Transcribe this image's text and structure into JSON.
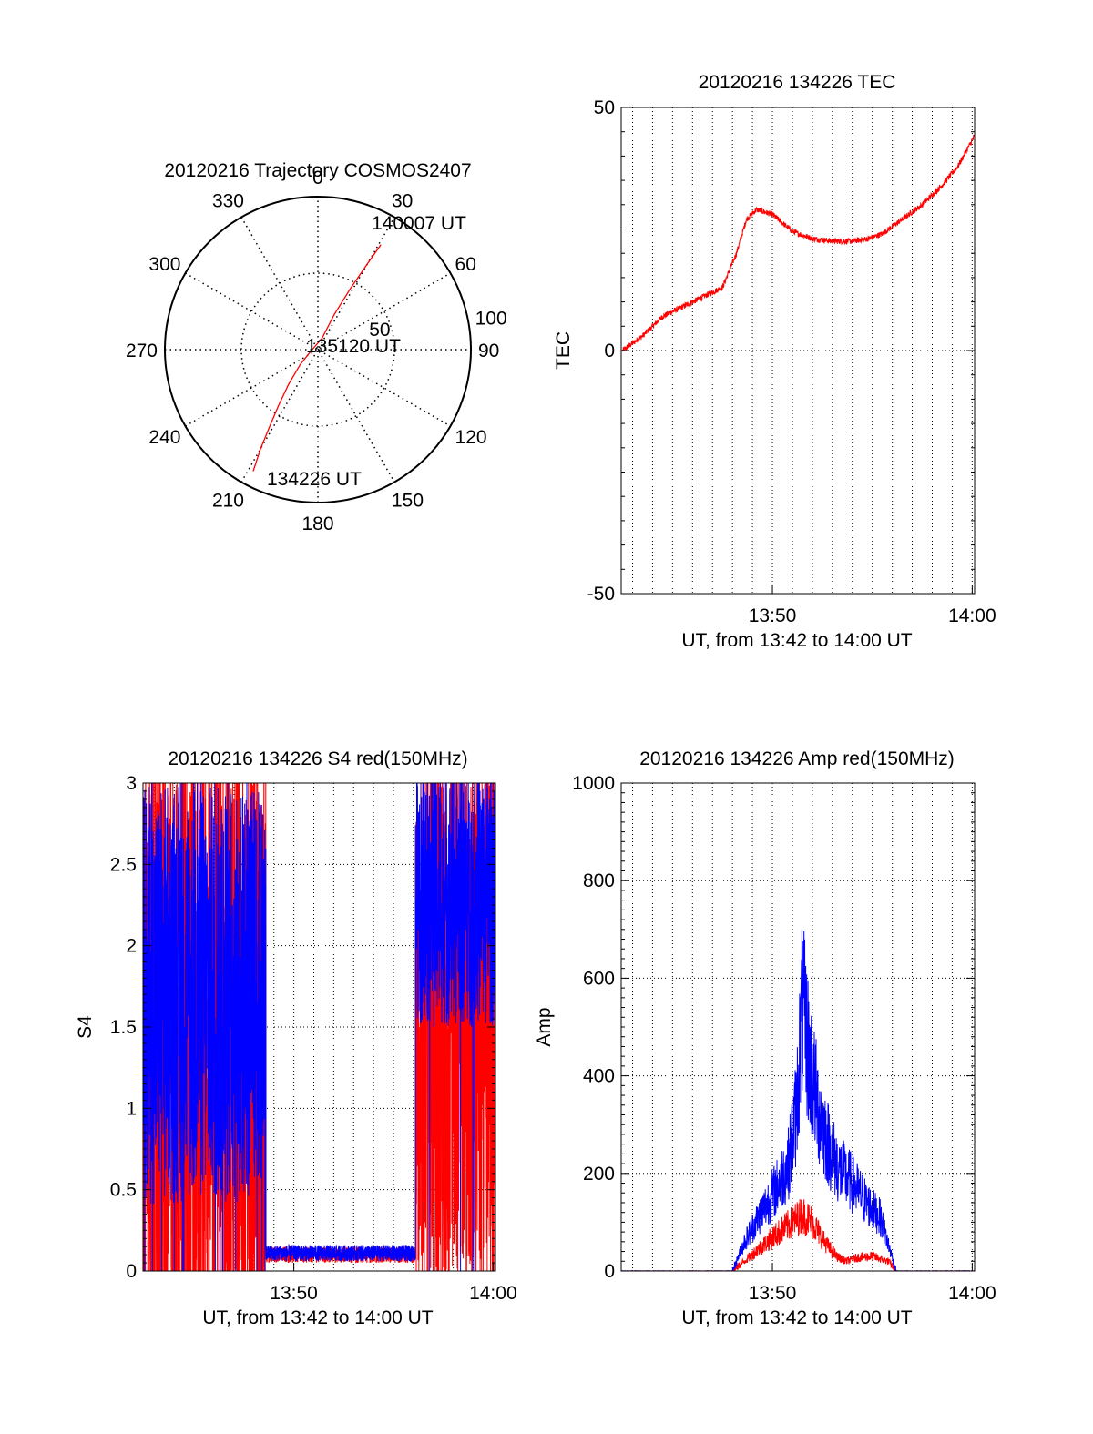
{
  "colors": {
    "red": "#ff0000",
    "blue": "#0000ff",
    "axis": "#000000",
    "grid": "#000000"
  },
  "chart_data": [
    {
      "id": "trajectory",
      "type": "polar",
      "title": "20120216 Trajectory COSMOS2407",
      "radial_ticks": [
        "50",
        "100"
      ],
      "radial_values": [
        50,
        100
      ],
      "angle_ticks": [
        {
          "deg": 0,
          "label": "0"
        },
        {
          "deg": 30,
          "label": "30"
        },
        {
          "deg": 60,
          "label": "60"
        },
        {
          "deg": 90,
          "label": "90"
        },
        {
          "deg": 120,
          "label": "120"
        },
        {
          "deg": 150,
          "label": "150"
        },
        {
          "deg": 180,
          "label": "180"
        },
        {
          "deg": 210,
          "label": "210"
        },
        {
          "deg": 240,
          "label": "240"
        },
        {
          "deg": 270,
          "label": "270"
        },
        {
          "deg": 300,
          "label": "300"
        },
        {
          "deg": 330,
          "label": "330"
        }
      ],
      "annotations": [
        "140007 UT",
        "135120 UT",
        "134226 UT"
      ],
      "track": [
        {
          "az": 208,
          "r": 90
        },
        {
          "az": 210,
          "r": 75
        },
        {
          "az": 212,
          "r": 60
        },
        {
          "az": 215,
          "r": 45
        },
        {
          "az": 220,
          "r": 30
        },
        {
          "az": 230,
          "r": 15
        },
        {
          "az": 255,
          "r": 5
        },
        {
          "az": 20,
          "r": 8
        },
        {
          "az": 25,
          "r": 25
        },
        {
          "az": 28,
          "r": 45
        },
        {
          "az": 30,
          "r": 65
        },
        {
          "az": 31,
          "r": 80
        }
      ]
    },
    {
      "id": "tec",
      "type": "line",
      "title": "20120216 134226 TEC",
      "xlabel": "UT, from 13:42 to 14:00 UT",
      "ylabel": "TEC",
      "xlim": [
        822.43,
        840.12
      ],
      "ylim": [
        -50,
        50
      ],
      "x_ticks": [
        {
          "value": 830,
          "label": "13:50"
        },
        {
          "value": 840,
          "label": "14:00"
        }
      ],
      "y_ticks": [
        {
          "value": -50,
          "label": "-50"
        },
        {
          "value": 0,
          "label": "0"
        },
        {
          "value": 50,
          "label": "50"
        }
      ],
      "series": [
        {
          "color": "red",
          "noise": 0.6,
          "x": [
            822.5,
            823.5,
            824.5,
            825.5,
            826.5,
            827.5,
            828.2,
            828.7,
            829.2,
            830.0,
            831.0,
            832.0,
            833.0,
            834.0,
            834.8,
            835.5,
            836.5,
            837.5,
            838.5,
            839.3,
            840.1
          ],
          "y": [
            0,
            3,
            7,
            9,
            11,
            13,
            20,
            27,
            29,
            28,
            24.5,
            23,
            22.5,
            22.5,
            23,
            24,
            27,
            30,
            34,
            38,
            44
          ]
        }
      ]
    },
    {
      "id": "s4",
      "type": "line",
      "title": "20120216 134226 S4 red(150MHz)",
      "xlabel": "UT, from 13:42 to 14:00 UT",
      "ylabel": "S4",
      "xlim": [
        822.43,
        840.12
      ],
      "ylim": [
        0,
        3
      ],
      "x_ticks": [
        {
          "value": 830,
          "label": "13:50"
        },
        {
          "value": 840,
          "label": "14:00"
        }
      ],
      "y_ticks": [
        {
          "value": 0,
          "label": "0"
        },
        {
          "value": 0.5,
          "label": "0.5"
        },
        {
          "value": 1,
          "label": "1"
        },
        {
          "value": 1.5,
          "label": "1.5"
        },
        {
          "value": 2,
          "label": "2"
        },
        {
          "value": 2.5,
          "label": "2.5"
        },
        {
          "value": 3,
          "label": "3"
        }
      ],
      "series": [
        {
          "color": "red",
          "segments": [
            {
              "x0": 822.43,
              "x1": 828.6,
              "base": 1.2,
              "spread": 1.8,
              "spikes": 0.18
            },
            {
              "x0": 828.6,
              "x1": 836.1,
              "base": 0.1,
              "spread": 0.05,
              "spikes": 0
            },
            {
              "x0": 836.1,
              "x1": 840.12,
              "base": 1.6,
              "spread": 1.6,
              "spikes": 0.12
            }
          ]
        },
        {
          "color": "blue",
          "segments": [
            {
              "x0": 822.43,
              "x1": 828.6,
              "base": 1.7,
              "spread": 1.3,
              "spikes": 0.02
            },
            {
              "x0": 828.6,
              "x1": 836.1,
              "base": 0.11,
              "spread": 0.05,
              "spikes": 0
            },
            {
              "x0": 836.1,
              "x1": 840.12,
              "base": 2.3,
              "spread": 0.8,
              "spikes": 0.02
            }
          ]
        }
      ]
    },
    {
      "id": "amp",
      "type": "line",
      "title": "20120216 134226 Amp red(150MHz)",
      "xlabel": "UT, from 13:42 to 14:00 UT",
      "ylabel": "Amp",
      "xlim": [
        822.43,
        840.12
      ],
      "ylim": [
        0,
        1000
      ],
      "x_ticks": [
        {
          "value": 830,
          "label": "13:50"
        },
        {
          "value": 840,
          "label": "14:00"
        }
      ],
      "y_ticks": [
        {
          "value": 0,
          "label": "0"
        },
        {
          "value": 200,
          "label": "200"
        },
        {
          "value": 400,
          "label": "400"
        },
        {
          "value": 600,
          "label": "600"
        },
        {
          "value": 800,
          "label": "800"
        },
        {
          "value": 1000,
          "label": "1000"
        }
      ],
      "series": [
        {
          "color": "red",
          "noise": 0.35,
          "x": [
            822.43,
            828.0,
            828.6,
            829.3,
            830.2,
            831.0,
            831.5,
            832.0,
            832.6,
            833.2,
            833.7,
            834.3,
            835.0,
            835.8,
            836.2,
            840.12
          ],
          "y": [
            0,
            0,
            20,
            45,
            75,
            100,
            115,
            100,
            60,
            30,
            20,
            28,
            30,
            20,
            0,
            0
          ]
        },
        {
          "color": "blue",
          "noise": 0.35,
          "x": [
            822.43,
            828.0,
            828.6,
            829.3,
            830.2,
            830.8,
            831.2,
            831.5,
            831.9,
            832.3,
            832.8,
            833.3,
            834.0,
            834.7,
            835.4,
            835.8,
            836.2,
            840.12
          ],
          "y": [
            0,
            0,
            60,
            110,
            170,
            220,
            330,
            540,
            420,
            330,
            260,
            210,
            180,
            140,
            110,
            55,
            0,
            0
          ]
        }
      ]
    }
  ]
}
